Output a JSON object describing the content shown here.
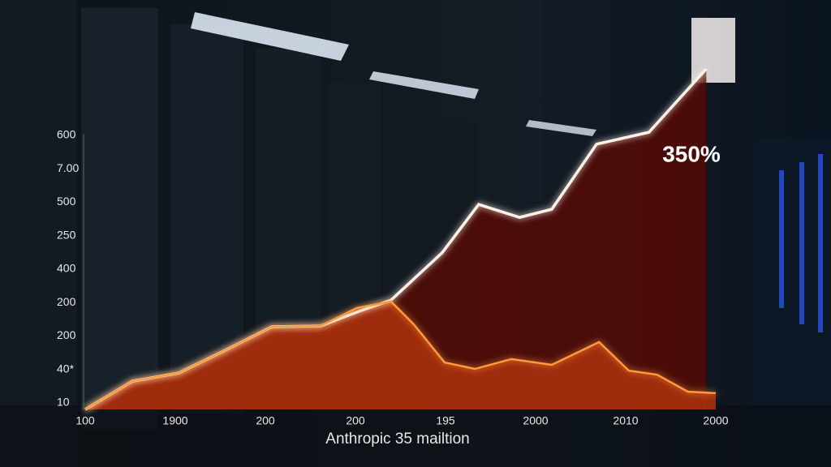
{
  "chart_data": {
    "type": "line",
    "annotation": "350%",
    "x_label": "Anthropic 35 mailtion",
    "categories": [
      "100",
      "1900",
      "200",
      "200",
      "195",
      "2000",
      "2010",
      "2000"
    ],
    "y_labels": [
      "600",
      "7.00",
      "500",
      "250",
      "400",
      "200",
      "200",
      "40*",
      "10"
    ],
    "xlim": [
      0,
      100
    ],
    "ylim": [
      0,
      100
    ],
    "series": [
      {
        "color": "#fff1e6",
        "fill": "#5a0a04",
        "x": [
          0,
          7.5,
          14.8,
          21.9,
          29.6,
          37.3,
          43.1,
          48.5,
          56.6,
          62.4,
          68.9,
          74.0,
          81.1,
          89.4,
          98.5
        ],
        "values": [
          0,
          8.3,
          10.7,
          17.1,
          24.3,
          24.5,
          28.6,
          32.1,
          46.0,
          60.2,
          56.4,
          58.8,
          77.9,
          81.4,
          100
        ]
      },
      {
        "color": "#ff9a3c",
        "fill": "#a8300c",
        "x": [
          0,
          7.5,
          14.8,
          21.9,
          29.6,
          37.3,
          43.1,
          48.5,
          52.1,
          57.0,
          61.8,
          67.6,
          74.0,
          81.5,
          86.2,
          90.7,
          95.6,
          100
        ],
        "values": [
          0,
          8.3,
          10.7,
          17.1,
          24.3,
          24.5,
          29.8,
          31.7,
          25,
          13.8,
          11.9,
          14.8,
          13.1,
          19.8,
          11.4,
          10.2,
          5.2,
          4.8
        ]
      }
    ]
  }
}
